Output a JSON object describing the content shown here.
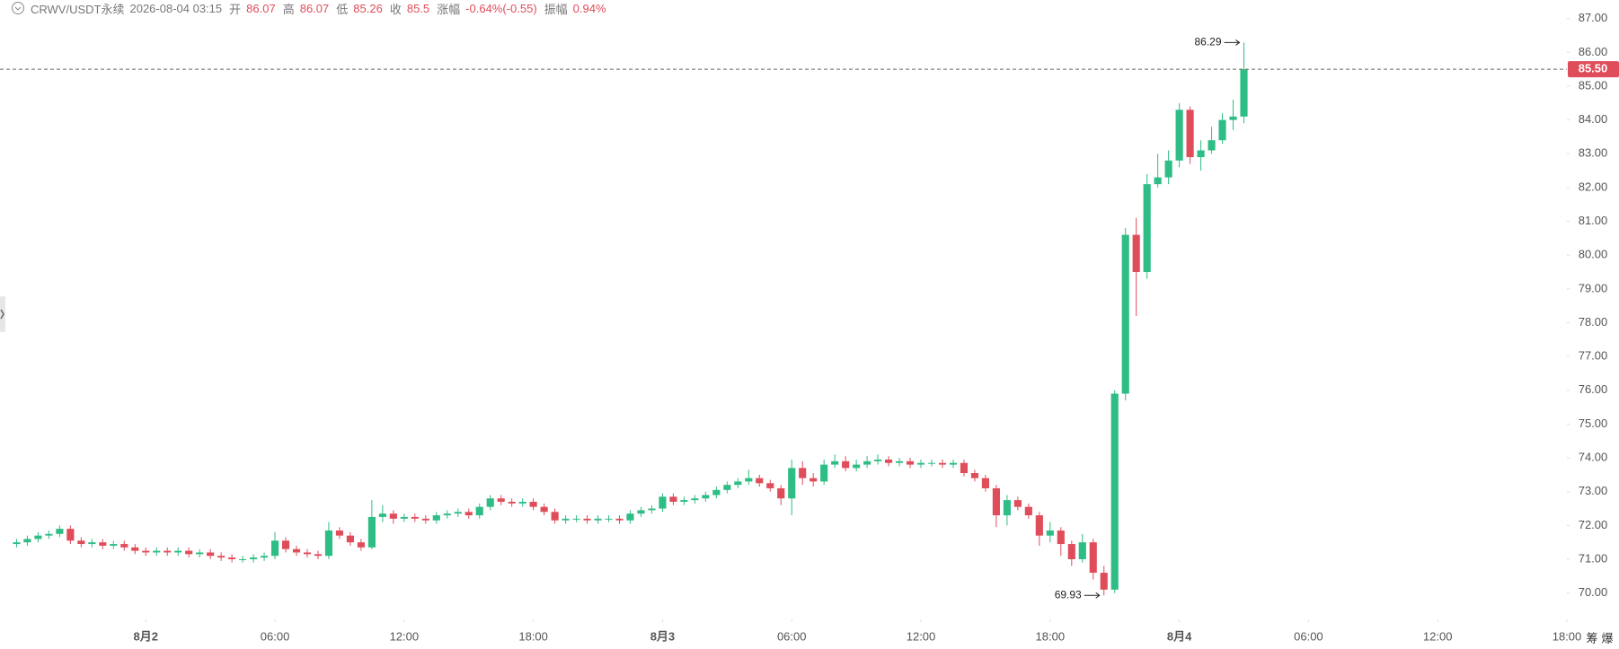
{
  "header": {
    "symbol": "CRWV/USDT永续",
    "time": "2026-08-04 03:15",
    "fields": [
      {
        "label": "开",
        "value": 86.07
      },
      {
        "label": "高",
        "value": 86.07
      },
      {
        "label": "低",
        "value": 85.26
      },
      {
        "label": "收",
        "value": 85.5
      },
      {
        "label": "涨幅",
        "value": "-0.64%(-0.55)"
      },
      {
        "label": "振幅",
        "value": "0.94%"
      }
    ]
  },
  "toolbar": [
    "筹",
    "爆"
  ],
  "chart_data": {
    "type": "candlestick",
    "up_color": "#2ebd85",
    "down_color": "#e04d5a",
    "open": [
      71.45,
      71.5,
      71.6,
      71.7,
      71.75,
      71.9,
      71.55,
      71.45,
      71.5,
      71.4,
      71.45,
      71.35,
      71.25,
      71.2,
      71.25,
      71.2,
      71.25,
      71.15,
      71.2,
      71.1,
      71.05,
      71.0,
      71.0,
      71.05,
      71.1,
      71.55,
      71.3,
      71.2,
      71.15,
      71.1,
      71.85,
      71.7,
      71.5,
      71.35,
      72.25,
      72.35,
      72.2,
      72.25,
      72.2,
      72.15,
      72.3,
      72.35,
      72.4,
      72.3,
      72.55,
      72.8,
      72.7,
      72.65,
      72.7,
      72.55,
      72.4,
      72.15,
      72.2,
      72.2,
      72.15,
      72.2,
      72.2,
      72.15,
      72.35,
      72.45,
      72.5,
      72.85,
      72.7,
      72.75,
      72.8,
      72.9,
      73.05,
      73.2,
      73.3,
      73.4,
      73.25,
      73.1,
      72.8,
      73.7,
      73.4,
      73.3,
      73.8,
      73.9,
      73.7,
      73.8,
      73.9,
      73.95,
      73.85,
      73.9,
      73.8,
      73.85,
      73.85,
      73.8,
      73.85,
      73.55,
      73.4,
      73.1,
      72.3,
      72.75,
      72.55,
      72.3,
      71.7,
      71.85,
      71.45,
      71.0,
      71.5,
      70.6,
      70.1,
      75.9,
      80.6,
      79.5,
      82.1,
      82.3,
      82.8,
      84.3,
      82.9,
      83.1,
      83.4,
      84.0,
      84.1
    ],
    "high": [
      71.6,
      71.7,
      71.8,
      71.85,
      72.0,
      72.0,
      71.65,
      71.6,
      71.6,
      71.55,
      71.55,
      71.45,
      71.35,
      71.35,
      71.35,
      71.35,
      71.35,
      71.3,
      71.3,
      71.2,
      71.15,
      71.1,
      71.15,
      71.2,
      71.8,
      71.65,
      71.4,
      71.3,
      71.25,
      72.1,
      71.95,
      71.8,
      71.6,
      72.75,
      72.6,
      72.45,
      72.35,
      72.35,
      72.3,
      72.4,
      72.45,
      72.5,
      72.5,
      72.65,
      72.9,
      72.9,
      72.8,
      72.8,
      72.8,
      72.65,
      72.5,
      72.3,
      72.3,
      72.3,
      72.3,
      72.3,
      72.3,
      72.45,
      72.55,
      72.6,
      72.95,
      72.95,
      72.85,
      72.9,
      73.0,
      73.15,
      73.3,
      73.4,
      73.65,
      73.5,
      73.35,
      73.2,
      73.95,
      73.9,
      73.55,
      73.95,
      74.1,
      74.05,
      73.95,
      74.05,
      74.1,
      74.05,
      74.0,
      74.0,
      73.95,
      73.95,
      73.95,
      73.95,
      73.95,
      73.65,
      73.5,
      73.2,
      72.9,
      72.85,
      72.65,
      72.4,
      72.1,
      71.95,
      71.55,
      71.75,
      71.6,
      70.8,
      76.0,
      80.8,
      81.1,
      82.4,
      83.0,
      83.1,
      84.5,
      84.4,
      83.4,
      83.8,
      84.2,
      84.6,
      86.29
    ],
    "low": [
      71.35,
      71.4,
      71.5,
      71.6,
      71.65,
      71.45,
      71.35,
      71.35,
      71.3,
      71.3,
      71.25,
      71.15,
      71.1,
      71.1,
      71.1,
      71.1,
      71.05,
      71.05,
      71.0,
      70.95,
      70.9,
      70.9,
      70.9,
      70.95,
      71.0,
      71.2,
      71.1,
      71.05,
      71.0,
      71.0,
      71.6,
      71.4,
      71.25,
      71.3,
      72.1,
      72.05,
      72.1,
      72.1,
      72.05,
      72.05,
      72.2,
      72.25,
      72.2,
      72.2,
      72.45,
      72.6,
      72.55,
      72.55,
      72.45,
      72.3,
      72.05,
      72.05,
      72.1,
      72.05,
      72.05,
      72.1,
      72.05,
      72.05,
      72.25,
      72.35,
      72.4,
      72.6,
      72.6,
      72.65,
      72.7,
      72.8,
      72.95,
      73.1,
      73.2,
      73.15,
      73.0,
      72.6,
      72.3,
      73.2,
      73.15,
      73.2,
      73.7,
      73.6,
      73.6,
      73.7,
      73.8,
      73.75,
      73.75,
      73.7,
      73.7,
      73.75,
      73.7,
      73.7,
      73.45,
      73.3,
      73.0,
      71.95,
      72.0,
      72.45,
      72.2,
      71.4,
      71.5,
      71.1,
      70.8,
      70.9,
      70.4,
      69.93,
      70.0,
      75.7,
      78.2,
      79.3,
      82.0,
      82.1,
      82.6,
      82.7,
      82.5,
      83.0,
      83.3,
      83.7,
      83.9
    ],
    "close": [
      71.5,
      71.6,
      71.7,
      71.75,
      71.9,
      71.55,
      71.45,
      71.5,
      71.4,
      71.45,
      71.35,
      71.25,
      71.2,
      71.25,
      71.2,
      71.25,
      71.15,
      71.2,
      71.1,
      71.05,
      71.0,
      71.0,
      71.05,
      71.1,
      71.55,
      71.3,
      71.2,
      71.15,
      71.1,
      71.85,
      71.7,
      71.5,
      71.35,
      72.25,
      72.35,
      72.2,
      72.25,
      72.2,
      72.15,
      72.3,
      72.35,
      72.4,
      72.3,
      72.55,
      72.8,
      72.7,
      72.65,
      72.7,
      72.55,
      72.4,
      72.15,
      72.2,
      72.2,
      72.15,
      72.2,
      72.2,
      72.15,
      72.35,
      72.45,
      72.5,
      72.85,
      72.7,
      72.75,
      72.8,
      72.9,
      73.05,
      73.2,
      73.3,
      73.4,
      73.25,
      73.1,
      72.8,
      73.7,
      73.4,
      73.3,
      73.8,
      73.9,
      73.7,
      73.8,
      73.9,
      73.95,
      73.85,
      73.9,
      73.8,
      73.85,
      73.85,
      73.8,
      73.85,
      73.55,
      73.4,
      73.1,
      72.3,
      72.75,
      72.55,
      72.3,
      71.7,
      71.85,
      71.45,
      71.0,
      71.5,
      70.6,
      70.1,
      75.9,
      80.6,
      79.5,
      82.1,
      82.3,
      82.8,
      84.3,
      82.9,
      83.1,
      83.4,
      84.0,
      84.1,
      85.5
    ],
    "high_marker": 114,
    "low_marker": 101,
    "last_price": {
      "value": 85.5,
      "label": "85.50"
    },
    "xlim": [
      -1.54,
      144
    ],
    "xticks": [
      {
        "value": 12,
        "label": "8月2"
      },
      {
        "value": 24,
        "label": "06:00"
      },
      {
        "value": 36,
        "label": "12:00"
      },
      {
        "value": 48,
        "label": "18:00"
      },
      {
        "value": 60,
        "label": "8月3"
      },
      {
        "value": 72,
        "label": "06:00"
      },
      {
        "value": 84,
        "label": "12:00"
      },
      {
        "value": 96,
        "label": "18:00"
      },
      {
        "value": 108,
        "label": "8月4"
      },
      {
        "value": 120,
        "label": "06:00"
      },
      {
        "value": 132,
        "label": "12:00"
      },
      {
        "value": 144,
        "label": "18:00"
      }
    ],
    "ylim": [
      69.22,
      87.55
    ],
    "yticks": [
      {
        "value": 70,
        "label": "70.00"
      },
      {
        "value": 71,
        "label": "71.00"
      },
      {
        "value": 72,
        "label": "72.00"
      },
      {
        "value": 73,
        "label": "73.00"
      },
      {
        "value": 74,
        "label": "74.00"
      },
      {
        "value": 75,
        "label": "75.00"
      },
      {
        "value": 76,
        "label": "76.00"
      },
      {
        "value": 77,
        "label": "77.00"
      },
      {
        "value": 78,
        "label": "78.00"
      },
      {
        "value": 79,
        "label": "79.00"
      },
      {
        "value": 80,
        "label": "80.00"
      },
      {
        "value": 81,
        "label": "81.00"
      },
      {
        "value": 82,
        "label": "82.00"
      },
      {
        "value": 83,
        "label": "83.00"
      },
      {
        "value": 84,
        "label": "84.00"
      },
      {
        "value": 85,
        "label": "85.00"
      },
      {
        "value": 86,
        "label": "86.00"
      },
      {
        "value": 87,
        "label": "87.00"
      }
    ],
    "grid": false
  }
}
